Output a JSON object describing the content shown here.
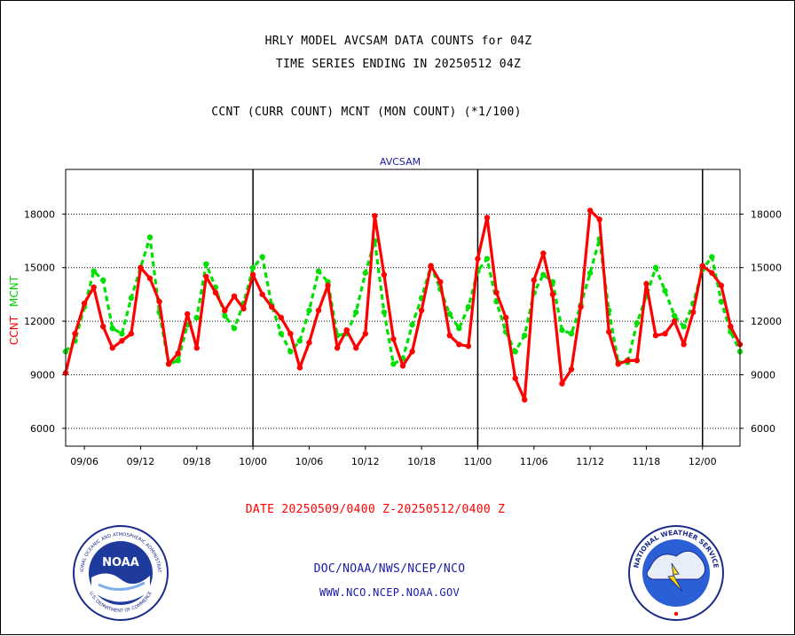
{
  "header": {
    "title_line1": "HRLY MODEL AVCSAM DATA COUNTS for 04Z",
    "title_line2": "TIME SERIES ENDING IN 20250512 04Z",
    "subtitle": "CCNT (CURR COUNT) MCNT (MON COUNT) (*1/100)"
  },
  "chart_data": {
    "type": "line",
    "title": "AVCSAM",
    "ylabel_ccnt": "CCNT",
    "ylabel_mcnt": "MCNT",
    "ylim": [
      5000,
      20500
    ],
    "yticks": [
      6000,
      9000,
      12000,
      15000,
      18000
    ],
    "ytick_labels": [
      "6000",
      "9000",
      "12000",
      "15000",
      "18000"
    ],
    "xticks": [
      "09/06",
      "09/12",
      "09/18",
      "10/00",
      "10/06",
      "10/12",
      "10/18",
      "11/00",
      "11/06",
      "11/12",
      "11/18",
      "12/00"
    ],
    "x_range": [
      0,
      72
    ],
    "xtick_positions": [
      2,
      8,
      14,
      20,
      26,
      32,
      38,
      44,
      50,
      56,
      62,
      68
    ],
    "day_boundaries": [
      20,
      44,
      68
    ],
    "grid": true,
    "colors": {
      "ccnt": "#ff0000",
      "mcnt": "#00e000"
    },
    "series": [
      {
        "name": "CCNT",
        "values": [
          9100,
          11300,
          13000,
          13900,
          11700,
          10500,
          10900,
          11300,
          15000,
          14400,
          13100,
          9600,
          10200,
          12400,
          10500,
          14500,
          13600,
          12600,
          13400,
          12700,
          14600,
          13500,
          12800,
          12200,
          11300,
          9400,
          10800,
          12600,
          14000,
          10500,
          11500,
          10500,
          11300,
          17900,
          14600,
          11000,
          9500,
          10300,
          12600,
          15100,
          14200,
          11200,
          10700,
          10600,
          15500,
          17800,
          13600,
          12200,
          8800,
          7600,
          14300,
          15800,
          13500,
          8500,
          9300,
          12800,
          18200,
          17700,
          11400,
          9600,
          9800,
          9800,
          14100,
          11200,
          11300,
          12000,
          10700,
          12500,
          15100,
          14700,
          14000,
          11700,
          10700
        ]
      },
      {
        "name": "MCNT",
        "values": [
          10300,
          10900,
          12800,
          14800,
          14300,
          11600,
          11300,
          13300,
          15000,
          16700,
          12500,
          9600,
          9800,
          11800,
          12200,
          15200,
          13900,
          12300,
          11600,
          13000,
          15000,
          15600,
          12900,
          11300,
          10300,
          10900,
          12600,
          14800,
          14200,
          11200,
          11300,
          12500,
          14700,
          16500,
          12500,
          9600,
          9900,
          11800,
          13300,
          15100,
          13800,
          12400,
          11600,
          12800,
          14800,
          15500,
          13100,
          11400,
          10300,
          11200,
          13600,
          14600,
          14200,
          11500,
          11300,
          12900,
          14700,
          16600,
          12600,
          9700,
          9700,
          11900,
          13400,
          15000,
          13700,
          12300,
          11700,
          13000,
          14900,
          15600,
          13100,
          11400,
          10300
        ]
      }
    ]
  },
  "footer": {
    "date_range": "DATE 20250509/0400 Z-20250512/0400 Z",
    "org_path": "DOC/NOAA/NWS/NCEP/NCO",
    "website": "WWW.NCO.NCEP.NOAA.GOV"
  },
  "logos": {
    "noaa_center_text": "NOAA",
    "noaa_ring_top": "NATIONAL OCEANIC AND ATMOSPHERIC ADMINISTRATION",
    "noaa_ring_bottom": "U.S. DEPARTMENT OF COMMERCE",
    "nws_ring_text": "NATIONAL WEATHER SERVICE"
  }
}
